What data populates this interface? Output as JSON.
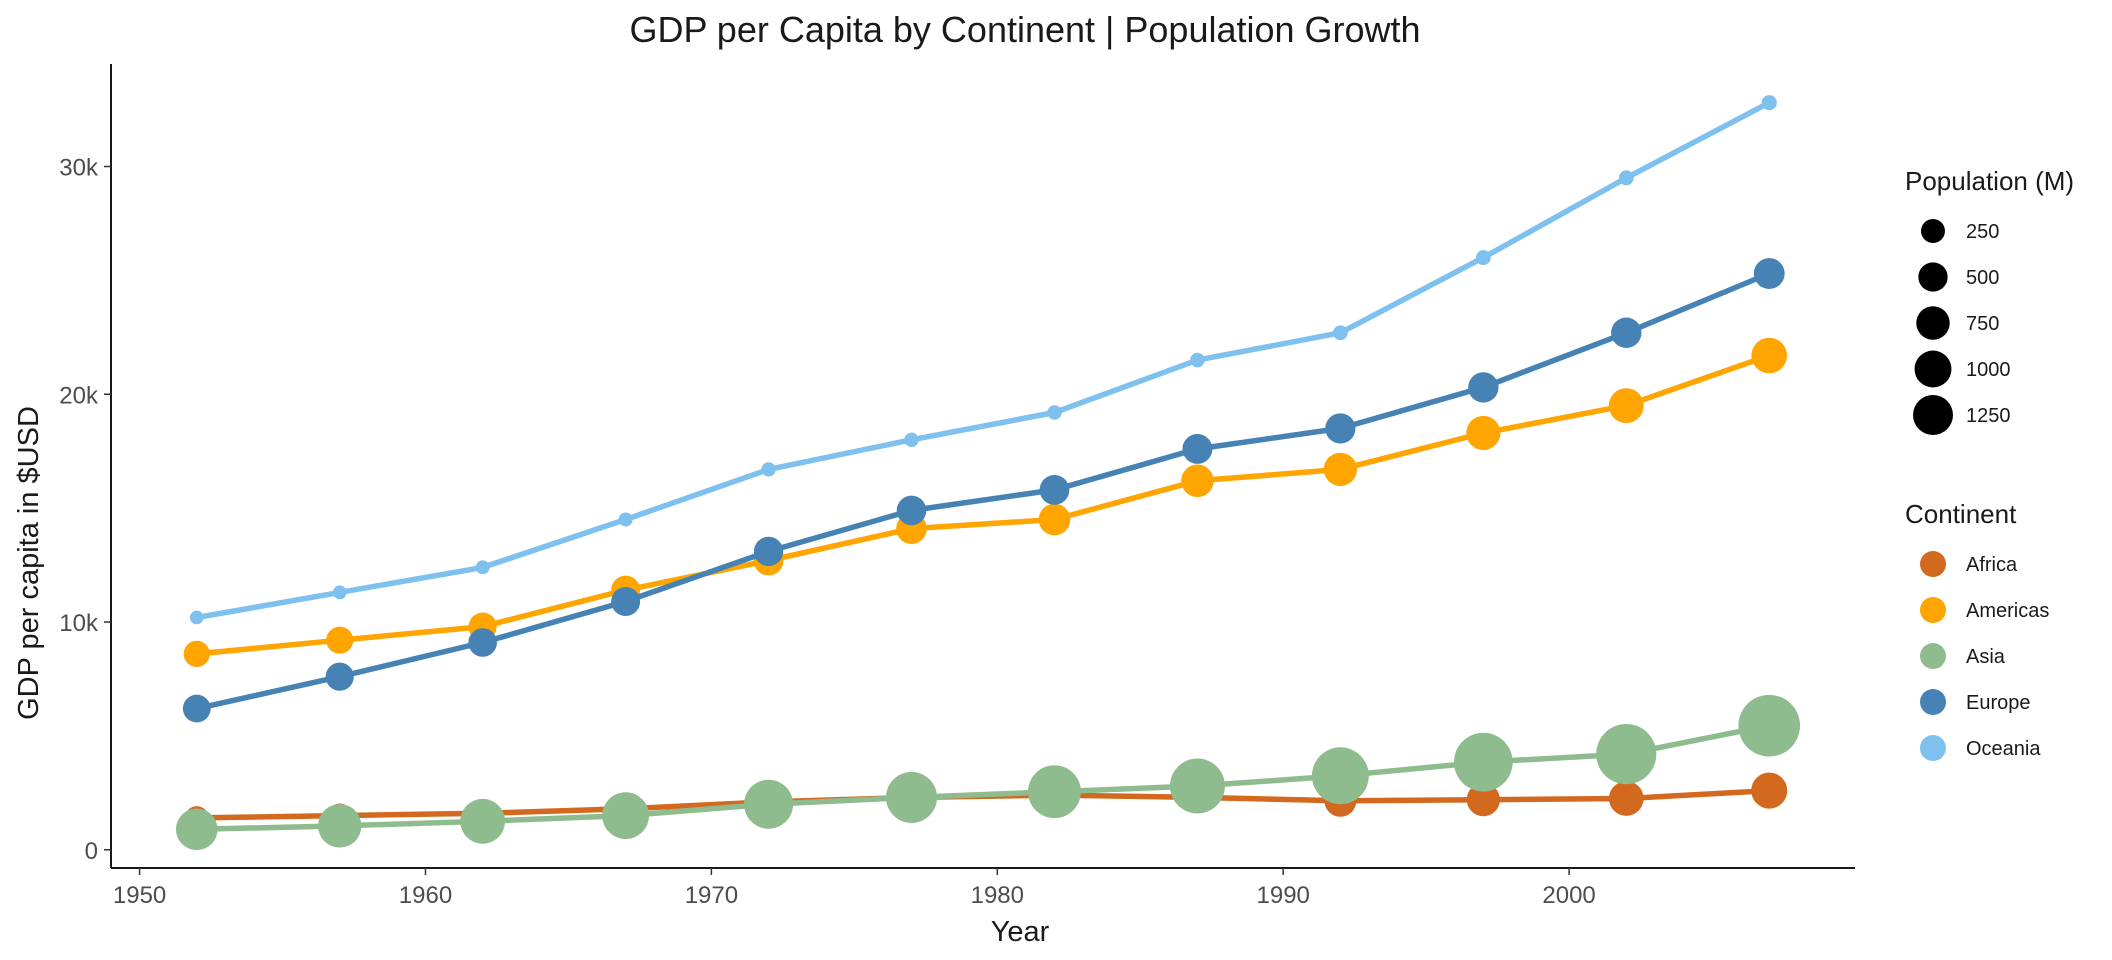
{
  "chart_data": {
    "type": "line",
    "title": "GDP per Capita by Continent | Population Growth",
    "xlabel": "Year",
    "ylabel": "GDP per capita in $USD",
    "xlim": [
      1949,
      2010
    ],
    "ylim": [
      -800,
      34500
    ],
    "x_ticks": [
      1950,
      1960,
      1970,
      1980,
      1990,
      2000
    ],
    "x_tick_labels": [
      "1950",
      "1960",
      "1970",
      "1980",
      "1990",
      "2000"
    ],
    "y_ticks": [
      0,
      10000,
      20000,
      30000
    ],
    "y_tick_labels": [
      "0",
      "10k",
      "20k",
      "30k"
    ],
    "grid": false,
    "x": [
      1952,
      1957,
      1962,
      1967,
      1972,
      1977,
      1982,
      1987,
      1992,
      1997,
      2002,
      2007
    ],
    "series": [
      {
        "name": "Africa",
        "color": "#D2691E",
        "values": [
          1400,
          1500,
          1600,
          1800,
          2100,
          2300,
          2400,
          2300,
          2150,
          2200,
          2250,
          2600
        ],
        "population_m": [
          237,
          265,
          297,
          336,
          385,
          438,
          498,
          571,
          654,
          735,
          833,
          930
        ]
      },
      {
        "name": "Americas",
        "color": "#FFA500",
        "values": [
          8600,
          9200,
          9800,
          11400,
          12700,
          14100,
          14500,
          16200,
          16700,
          18300,
          19500,
          21700
        ],
        "population_m": [
          345,
          387,
          434,
          480,
          527,
          578,
          631,
          687,
          739,
          797,
          849,
          899
        ]
      },
      {
        "name": "Asia",
        "color": "#8FBC8F",
        "values": [
          900,
          1050,
          1250,
          1500,
          2000,
          2300,
          2550,
          2800,
          3250,
          3850,
          4200,
          5450
        ],
        "population_m": [
          1395,
          1562,
          1697,
          1905,
          2150,
          2385,
          2611,
          2872,
          3133,
          3383,
          3601,
          3812
        ]
      },
      {
        "name": "Europe",
        "color": "#4682B4",
        "values": [
          6200,
          7600,
          9100,
          10900,
          13100,
          14900,
          15800,
          17600,
          18500,
          20300,
          22700,
          25300
        ],
        "population_m": [
          418,
          438,
          460,
          481,
          500,
          514,
          524,
          534,
          548,
          555,
          560,
          586
        ]
      },
      {
        "name": "Oceania",
        "color": "#7EC0EE",
        "values": [
          10200,
          11300,
          12400,
          14500,
          16700,
          18000,
          19200,
          21500,
          22700,
          26000,
          29500,
          32800
        ],
        "population_m": [
          10,
          11,
          13,
          14,
          16,
          17,
          18,
          19,
          21,
          22,
          23,
          25
        ]
      }
    ],
    "legends": [
      {
        "title": "Population (M)",
        "type": "size",
        "items": [
          {
            "label": "250",
            "value": 250
          },
          {
            "label": "500",
            "value": 500
          },
          {
            "label": "750",
            "value": 750
          },
          {
            "label": "1000",
            "value": 1000
          },
          {
            "label": "1250",
            "value": 1250
          }
        ]
      },
      {
        "title": "Continent",
        "type": "color",
        "items": [
          {
            "label": "Africa",
            "color": "#D2691E"
          },
          {
            "label": "Americas",
            "color": "#FFA500"
          },
          {
            "label": "Asia",
            "color": "#8FBC8F"
          },
          {
            "label": "Europe",
            "color": "#4682B4"
          },
          {
            "label": "Oceania",
            "color": "#7EC0EE"
          }
        ]
      }
    ],
    "legend_position": "right"
  }
}
